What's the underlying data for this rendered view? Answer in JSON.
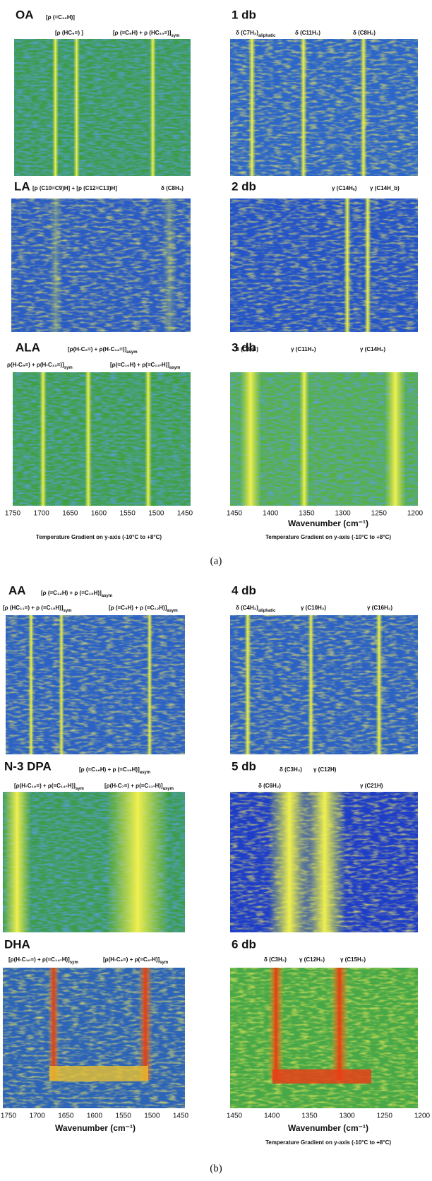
{
  "panels": [
    {
      "title": "OA",
      "annotations": [
        {
          "text": "[ρ (=C₁₀H)]"
        },
        {
          "text": "[ρ (HC₉=) ]"
        },
        {
          "text": "[ρ (=C₉H) + ρ (HC₁₀=)]",
          "sub": "sym"
        }
      ]
    },
    {
      "title": "1 db",
      "annotations": [
        {
          "text": "δ (C7H₂)",
          "sub": "aliphatic"
        },
        {
          "text": "δ (C11H₂)"
        },
        {
          "text": "δ (C8H₂)"
        }
      ]
    },
    {
      "title": "LA",
      "annotations": [
        {
          "text": "[ρ (C10=C9)H] + [ρ (C12=C13)H]"
        },
        {
          "text": "δ (C8H₂)"
        }
      ]
    },
    {
      "title": "2 db",
      "annotations": [
        {
          "text": "γ (C14Hₐ)"
        },
        {
          "text": "γ (C14H_b)"
        }
      ]
    },
    {
      "title": "ALA",
      "annotations": [
        {
          "text": "[ρ(H-C₉=) + ρ(H-C₁₂=)]",
          "sub": "asym"
        },
        {
          "text": "ρ(H-C₉=) + ρ(H-C₁₃=)]",
          "sub": "sym"
        },
        {
          "text": "[ρ(=C₁₀H) + ρ(=C₁₃-H)]",
          "sub": "asym"
        }
      ]
    },
    {
      "title": "3 db",
      "annotations": [
        {
          "text": "δ (C8H₂)"
        },
        {
          "text": "γ (C11H₂)"
        },
        {
          "text": "γ (C14H₂)"
        }
      ]
    },
    {
      "title": "AA",
      "annotations": [
        {
          "text": "[ρ (=C₁₂H) + ρ (=C₁₅H)]",
          "sub": "asym"
        },
        {
          "text": "[ρ (HC₁₁=) + ρ (=C₁₅H)]",
          "sub": "sym"
        },
        {
          "text": "[ρ (=C₉H) + ρ (=C₁₂H)]",
          "sub": "asym"
        }
      ]
    },
    {
      "title": "4 db",
      "annotations": [
        {
          "text": "δ (C4H₂)",
          "sub": "aliphatic"
        },
        {
          "text": "γ (C10H₂)"
        },
        {
          "text": "γ (C16H₂)"
        }
      ]
    },
    {
      "title": "N-3 DPA",
      "annotations": [
        {
          "text": "[ρ (=C₁₆H) + ρ (=C₁₉H)]",
          "sub": "asym"
        },
        {
          "text": "[ρ(H-C₁₀=) + ρ(=C₁₄-H)]",
          "sub": "sym"
        },
        {
          "text": "[ρ(H-C₇=) + ρ(=C₁₁-H)]",
          "sub": "asym"
        }
      ]
    },
    {
      "title": "5 db",
      "annotations": [
        {
          "text": "δ (C3H₂)"
        },
        {
          "text": "γ (C12H)"
        },
        {
          "text": "δ (C6H₂)"
        },
        {
          "text": "γ (C21H)"
        }
      ]
    },
    {
      "title": "DHA",
      "annotations": [
        {
          "text": "[ρ(H-C₁₀=) + ρ(=C₁₄-H)]",
          "sub": "sym"
        },
        {
          "text": "[ρ(H-C₆=) + ρ(=C₈-H)]",
          "sub": "sym"
        }
      ]
    },
    {
      "title": "6 db",
      "annotations": [
        {
          "text": "δ (C3H₂)"
        },
        {
          "text": "γ (C12H₂)"
        },
        {
          "text": "γ (C15H₂)"
        }
      ]
    }
  ],
  "axes": [
    {
      "ticks": [
        1750,
        1700,
        1650,
        1600,
        1550,
        1500,
        1450
      ],
      "note": "Temperature Gradient on y-axis (-10°C to +8°C)"
    },
    {
      "ticks": [
        1450,
        1400,
        1350,
        1300,
        1250,
        1200
      ],
      "label": "Wavenumber (cm⁻¹)",
      "note": "Temperature Gradient on y-axis (-10°C to +8°C)"
    },
    {
      "ticks": [
        1750,
        1700,
        1650,
        1600,
        1550,
        1500,
        1450
      ],
      "label": "Wavenumber (cm⁻¹)"
    },
    {
      "ticks": [
        1450,
        1400,
        1350,
        1300,
        1250,
        1200
      ],
      "label": "Wavenumber (cm⁻¹)",
      "note": "Temperature Gradient on y-axis (-10°C to +8°C)"
    }
  ],
  "captions": [
    "(a)",
    "(b)"
  ]
}
